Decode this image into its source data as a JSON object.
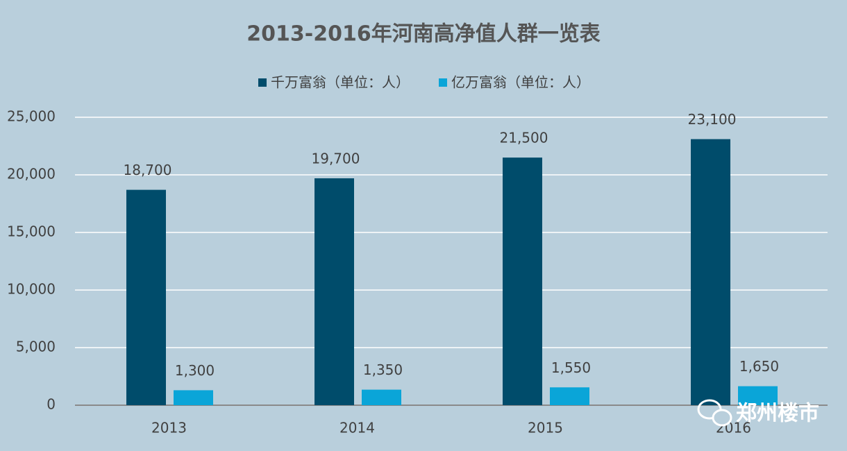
{
  "chart_data": {
    "type": "bar",
    "title": "2013-2016年河南高净值人群一览表",
    "categories": [
      "2013",
      "2014",
      "2015",
      "2016"
    ],
    "series": [
      {
        "name": "千万富翁（单位：人）",
        "color": "#004c6b",
        "values": [
          18700,
          19700,
          21500,
          23100
        ],
        "value_labels": [
          "18,700",
          "19,700",
          "21,500",
          "23,100"
        ]
      },
      {
        "name": "亿万富翁（单位：人）",
        "color": "#0aa5d8",
        "values": [
          1300,
          1350,
          1550,
          1650
        ],
        "value_labels": [
          "1,300",
          "1,350",
          "1,550",
          "1,650"
        ]
      }
    ],
    "ylim": [
      0,
      25000
    ],
    "yticks": [
      0,
      {
        "value": 5000,
        "label": "5,000"
      },
      {
        "value": 10000,
        "label": "10,000"
      },
      {
        "value": 15000,
        "label": "15,000"
      },
      {
        "value": 20000,
        "label": "20,000"
      },
      {
        "value": 25000,
        "label": "25,000"
      }
    ],
    "grid": true,
    "legend": "top",
    "watermark": "郑州楼市"
  }
}
